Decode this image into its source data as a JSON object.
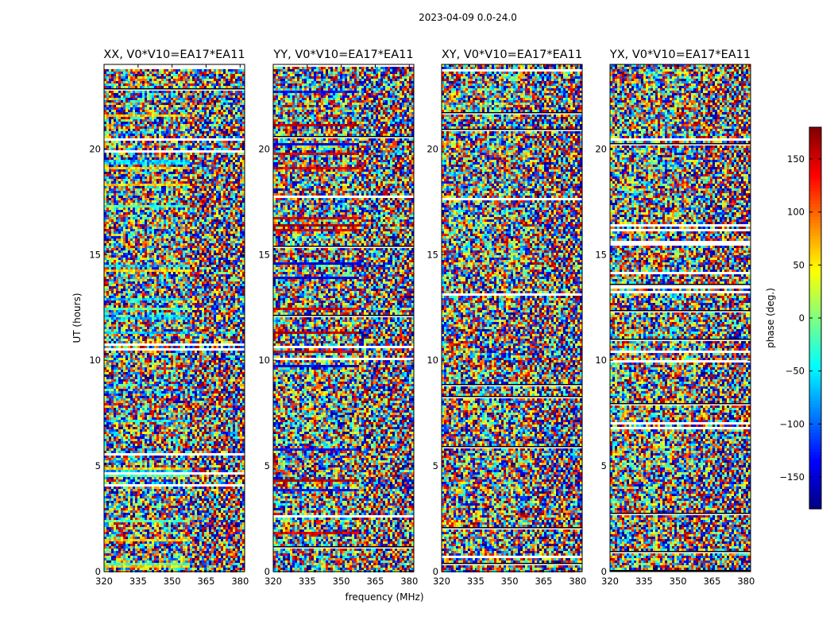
{
  "figure": {
    "suptitle": "2023-04-09 0.0-24.0"
  },
  "chart_data": {
    "type": "heatmap",
    "title": "2023-04-09 0.0-24.0",
    "xlabel": "frequency (MHz)",
    "ylabel": "UT (hours)",
    "xlim": [
      320,
      382
    ],
    "ylim": [
      0,
      24
    ],
    "x_ticks": [
      320,
      335,
      350,
      365,
      380
    ],
    "y_ticks": [
      0,
      5,
      10,
      15,
      20
    ],
    "panels": [
      {
        "name": "XX",
        "title": "XX, V0*V10=EA17*EA11"
      },
      {
        "name": "YY",
        "title": "YY, V0*V10=EA17*EA11"
      },
      {
        "name": "XY",
        "title": "XY, V0*V10=EA17*EA11"
      },
      {
        "name": "YX",
        "title": "YX, V0*V10=EA17*EA11"
      }
    ],
    "colorbar": {
      "label": "phase (deg.)",
      "range": [
        -180,
        180
      ],
      "ticks": [
        150,
        100,
        50,
        0,
        -50,
        -100,
        -150
      ],
      "tick_labels": [
        "150",
        "100",
        "50",
        "0",
        "−50",
        "−100",
        "−150"
      ],
      "colormap": "jet"
    }
  }
}
